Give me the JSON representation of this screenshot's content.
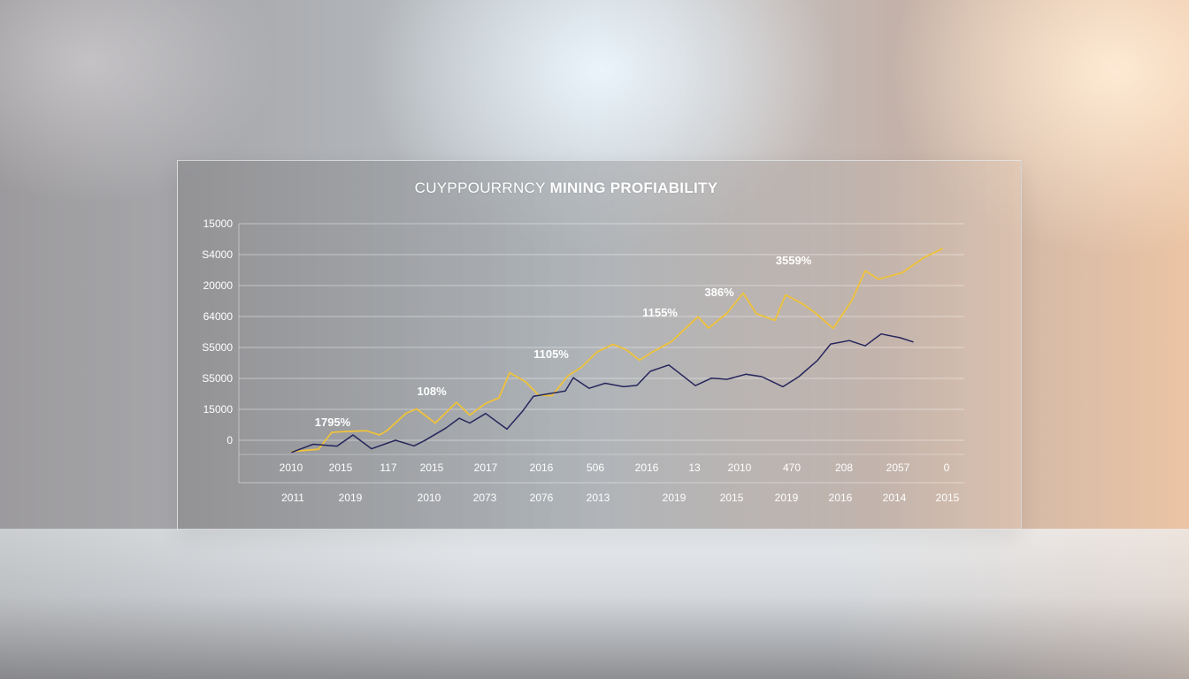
{
  "chart_data": {
    "type": "line",
    "title": "CUYPPOURRNCY MINING PROFIABILITY",
    "title_parts": [
      "CUYPPOURRNCY",
      "MINING PROFIABILITY"
    ],
    "ytick_labels": [
      "15000",
      "S4000",
      "20000",
      "64000",
      "S5000",
      "S5000",
      "15000",
      "0"
    ],
    "xtick_labels_row1": [
      "2010",
      "2015",
      "117",
      "2015",
      "2017",
      "2016",
      "506",
      "2016",
      "13",
      "2010",
      "470",
      "208",
      "2057",
      "0"
    ],
    "xtick_labels_row2": [
      "2011",
      "2019",
      "2010",
      "2073",
      "2076",
      "2013",
      "2019",
      "2015",
      "2019",
      "2016",
      "2014",
      "2015"
    ],
    "annotations": [
      "1795%",
      "108%",
      "1105%",
      "1155%",
      "386%",
      "3559%"
    ],
    "grid": true,
    "colors": {
      "gold": "#efc23a",
      "navy": "#26265c"
    },
    "series": [
      {
        "color": "gold",
        "x": [
          0,
          1,
          1.5,
          2,
          2.8,
          3.3,
          3.6,
          4.3,
          4.7,
          5.4,
          6.2,
          6.7,
          7.3,
          7.8,
          8.2,
          8.8,
          9.3,
          9.8,
          10.4,
          10.9,
          11.5,
          12.1,
          12.6,
          13.1,
          13.6,
          14.3,
          15.3,
          15.7,
          16.4,
          17.0,
          17.5,
          18.2,
          18.6,
          19.2,
          19.7,
          20.4,
          21.1,
          21.6,
          22.1,
          23.0,
          23.8,
          24.5
        ],
        "y": [
          -420,
          -340,
          300,
          330,
          360,
          200,
          380,
          1020,
          1180,
          650,
          1430,
          950,
          1390,
          1600,
          2550,
          2210,
          1700,
          1680,
          2430,
          2750,
          3330,
          3620,
          3410,
          3020,
          3340,
          3720,
          4660,
          4230,
          4800,
          5550,
          4770,
          4520,
          5480,
          5170,
          4820,
          4220,
          5280,
          6390,
          6070,
          6320,
          6880,
          7220
        ]
      },
      {
        "color": "navy",
        "x": [
          0,
          0.8,
          1.7,
          2.3,
          3.0,
          3.9,
          4.6,
          5.0,
          5.8,
          6.3,
          6.7,
          7.3,
          8.1,
          8.7,
          9.1,
          10.3,
          10.6,
          11.2,
          11.8,
          12.5,
          13.0,
          13.5,
          14.2,
          15.2,
          15.8,
          16.4,
          17.1,
          17.7,
          18.5,
          19.1,
          19.8,
          20.3,
          21.0,
          21.6,
          22.2,
          22.9,
          23.4
        ],
        "y": [
          -450,
          -150,
          -220,
          200,
          -320,
          0,
          -210,
          -10,
          460,
          830,
          650,
          1010,
          420,
          1110,
          1660,
          1860,
          2360,
          1960,
          2150,
          2020,
          2070,
          2600,
          2840,
          2060,
          2340,
          2300,
          2490,
          2400,
          2020,
          2400,
          3010,
          3630,
          3760,
          3560,
          4010,
          3870,
          3710
        ]
      }
    ]
  }
}
